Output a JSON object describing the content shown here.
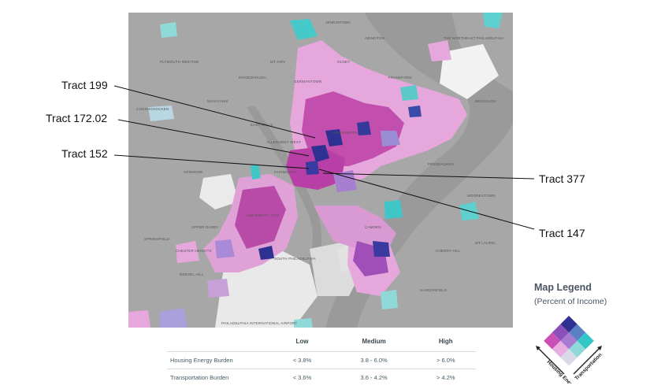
{
  "callouts": [
    {
      "id": "tract-199",
      "label": "Tract 199"
    },
    {
      "id": "tract-172-02",
      "label": "Tract 172.02"
    },
    {
      "id": "tract-152",
      "label": "Tract 152"
    },
    {
      "id": "tract-377",
      "label": "Tract 377"
    },
    {
      "id": "tract-147",
      "label": "Tract 147"
    }
  ],
  "legend": {
    "title": "Map Legend",
    "subtitle": "(Percent of Income)",
    "axis_left": "Housing Energy",
    "axis_right": "Transportation",
    "colors": {
      "low_low": "#d9d9e8",
      "high_housing": "#c94fb4",
      "high_transport": "#33c6c6",
      "high_both": "#2e3192",
      "mid": "#a77bd1",
      "mid_light_pink": "#e8aee0",
      "mid_light_teal": "#8fd9d8"
    }
  },
  "table": {
    "headers": [
      "",
      "Low",
      "Medium",
      "High"
    ],
    "rows": [
      {
        "label": "Housing Energy Burden",
        "low": "< 3.8%",
        "medium": "3.8 - 6.0%",
        "high": "> 6.0%"
      },
      {
        "label": "Transportation Burden",
        "low": "< 3.6%",
        "medium": "3.6 - 4.2%",
        "high": "> 4.2%"
      }
    ]
  },
  "map_labels": {
    "plymouth": "Plymouth Meeting",
    "jenkintown": "Jenkintown",
    "abington": "Abington",
    "roxborough": "Roxborough",
    "manayunk": "Manayunk",
    "germantown": "Germantown",
    "olney": "Olney",
    "frankford": "Frankford",
    "fairmount": "Fairmount",
    "allegheny_west": "Allegheny West",
    "kensington": "Kensington",
    "university_city": "University City",
    "south_philadelphia": "South Philadelphia",
    "camden": "Camden",
    "cherry_hill": "Cherry Hill",
    "northeast_philadelphia": "The Northeast Philadelphia",
    "airport": "Philadelphia International Airport",
    "springfield": "Springfield",
    "drexel_hill": "Drexel Hill",
    "upper_darby": "Upper Darby",
    "ardmore": "Ardmore",
    "conshohocken": "Conshohocken",
    "chester_heights": "Chester Heights",
    "east_falls": "East Falls",
    "mt_airy": "Mt Airy",
    "bensalem": "Bensalem",
    "pennsauken": "Pennsauken",
    "haddonfield": "Haddonfield",
    "moorestown": "Moorestown",
    "sicklerville": "Mt Laurel"
  }
}
